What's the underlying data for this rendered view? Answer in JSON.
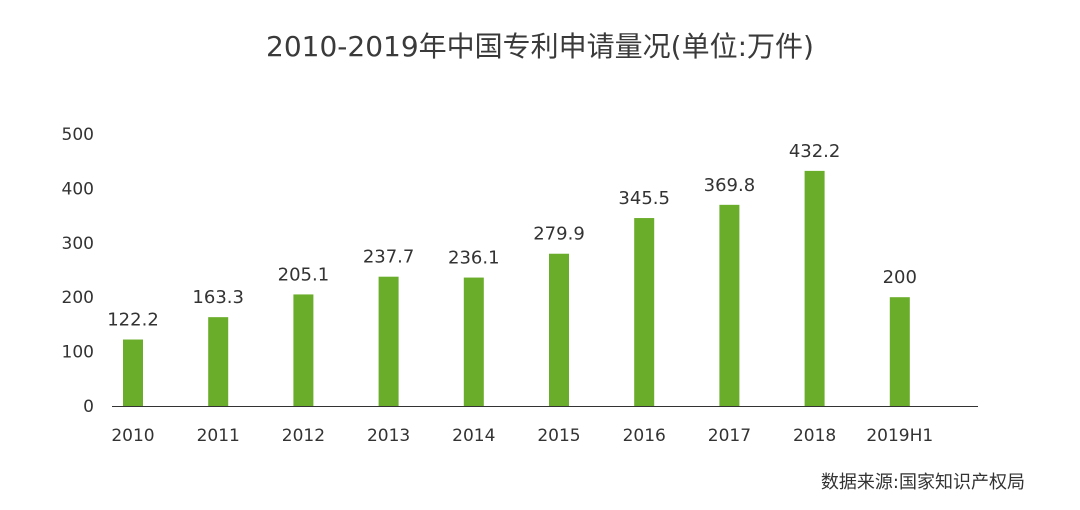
{
  "chart_data": {
    "type": "bar",
    "title": "2010-2019年中国专利申请量况(单位:万件)",
    "categories": [
      "2010",
      "2011",
      "2012",
      "2013",
      "2014",
      "2015",
      "2016",
      "2017",
      "2018",
      "2019H1"
    ],
    "values": [
      122.2,
      163.3,
      205.1,
      237.7,
      236.1,
      279.9,
      345.5,
      369.8,
      432.2,
      200
    ],
    "data_labels": [
      "122.2",
      "163.3",
      "205.1",
      "237.7",
      "236.1",
      "279.9",
      "345.5",
      "369.8",
      "432.2",
      "200"
    ],
    "y_ticks": [
      0,
      100,
      200,
      300,
      400,
      500
    ],
    "ylim": [
      0,
      500
    ],
    "xlabel": "",
    "ylabel": "",
    "grid": false,
    "legend": "none",
    "source": "数据来源:国家知识产权局",
    "colors": {
      "bar": "#6aad2a",
      "axis": "#333333",
      "text": "#333333"
    }
  }
}
